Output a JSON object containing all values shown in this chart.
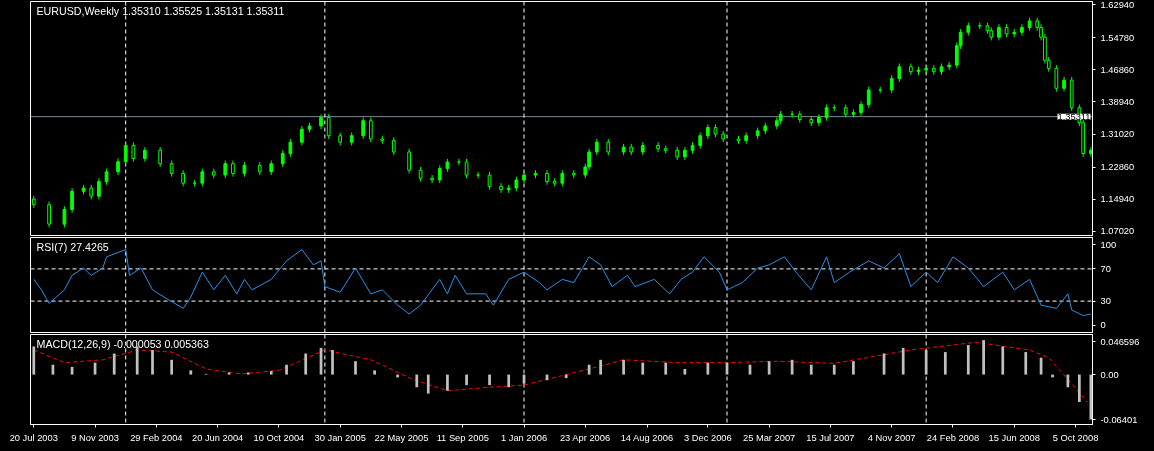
{
  "chart_data": [
    {
      "type": "candlestick",
      "title": "EURUSD,Weekly  1.35310 1.35525 1.35131 1.35311",
      "color": "#00ff00",
      "x": [
        "2003-07-20",
        "2003-08-17",
        "2003-09-14",
        "2003-09-28",
        "2003-10-19",
        "2003-11-02",
        "2003-11-16",
        "2003-11-30",
        "2003-12-21",
        "2004-01-04",
        "2004-01-18",
        "2004-02-08",
        "2004-03-07",
        "2004-03-28",
        "2004-04-18",
        "2004-05-09",
        "2004-05-23",
        "2004-06-13",
        "2004-07-04",
        "2004-07-18",
        "2004-08-08",
        "2004-09-05",
        "2004-09-26",
        "2004-10-17",
        "2004-10-31",
        "2004-11-21",
        "2004-12-05",
        "2004-12-26",
        "2005-01-09",
        "2005-01-30",
        "2005-02-20",
        "2005-03-13",
        "2005-03-27",
        "2005-04-17",
        "2005-05-08",
        "2005-06-05",
        "2005-06-26",
        "2005-07-17",
        "2005-07-31",
        "2005-08-14",
        "2005-09-04",
        "2005-09-18",
        "2005-10-09",
        "2005-10-30",
        "2005-11-20",
        "2005-12-04",
        "2005-12-18",
        "2006-01-01",
        "2006-01-22",
        "2006-02-12",
        "2006-02-26",
        "2006-03-12",
        "2006-04-02",
        "2006-04-23",
        "2006-04-30",
        "2006-05-14",
        "2006-06-04",
        "2006-07-02",
        "2006-07-16",
        "2006-08-06",
        "2006-09-03",
        "2006-09-17",
        "2006-10-08",
        "2006-10-22",
        "2006-11-05",
        "2006-11-19",
        "2006-12-03",
        "2006-12-17",
        "2006-12-31",
        "2007-01-28",
        "2007-02-11",
        "2007-03-04",
        "2007-03-18",
        "2007-04-08",
        "2007-04-15",
        "2007-05-06",
        "2007-05-20",
        "2007-06-10",
        "2007-06-24",
        "2007-07-08",
        "2007-07-22",
        "2007-08-12",
        "2007-08-26",
        "2007-09-09",
        "2007-09-23",
        "2007-10-14",
        "2007-11-04",
        "2007-11-18",
        "2007-12-09",
        "2007-12-23",
        "2008-01-06",
        "2008-01-20",
        "2008-02-03",
        "2008-02-17",
        "2008-03-02",
        "2008-03-09",
        "2008-03-23",
        "2008-04-13",
        "2008-04-27",
        "2008-05-04",
        "2008-05-18",
        "2008-06-01",
        "2008-06-15",
        "2008-06-29",
        "2008-07-13",
        "2008-07-27",
        "2008-08-03",
        "2008-08-10",
        "2008-08-17",
        "2008-08-31",
        "2008-09-14",
        "2008-09-28",
        "2008-10-12",
        "2008-10-19",
        "2008-11-02"
      ],
      "ohlc": [
        [
          1.15,
          1.158,
          1.128,
          1.136
        ],
        [
          1.136,
          1.144,
          1.08,
          1.088
        ],
        [
          1.088,
          1.132,
          1.08,
          1.124
        ],
        [
          1.124,
          1.177,
          1.116,
          1.169
        ],
        [
          1.169,
          1.185,
          1.161,
          1.177
        ],
        [
          1.177,
          1.185,
          1.149,
          1.157
        ],
        [
          1.157,
          1.201,
          1.149,
          1.193
        ],
        [
          1.193,
          1.225,
          1.185,
          1.217
        ],
        [
          1.217,
          1.25,
          1.209,
          1.242
        ],
        [
          1.242,
          1.29,
          1.234,
          1.282
        ],
        [
          1.282,
          1.29,
          1.242,
          1.25
        ],
        [
          1.25,
          1.278,
          1.242,
          1.27
        ],
        [
          1.27,
          1.278,
          1.229,
          1.237
        ],
        [
          1.237,
          1.245,
          1.205,
          1.213
        ],
        [
          1.213,
          1.221,
          1.181,
          1.189
        ],
        [
          1.189,
          1.197,
          1.181,
          1.189
        ],
        [
          1.189,
          1.225,
          1.181,
          1.217
        ],
        [
          1.217,
          1.225,
          1.201,
          1.209
        ],
        [
          1.209,
          1.245,
          1.201,
          1.237
        ],
        [
          1.237,
          1.245,
          1.205,
          1.213
        ],
        [
          1.213,
          1.241,
          1.205,
          1.233
        ],
        [
          1.233,
          1.241,
          1.209,
          1.217
        ],
        [
          1.217,
          1.245,
          1.209,
          1.237
        ],
        [
          1.237,
          1.27,
          1.229,
          1.262
        ],
        [
          1.262,
          1.298,
          1.254,
          1.29
        ],
        [
          1.29,
          1.33,
          1.282,
          1.322
        ],
        [
          1.322,
          1.338,
          1.314,
          1.33
        ],
        [
          1.33,
          1.359,
          1.322,
          1.351
        ],
        [
          1.351,
          1.359,
          1.298,
          1.306
        ],
        [
          1.306,
          1.314,
          1.282,
          1.29
        ],
        [
          1.29,
          1.314,
          1.282,
          1.306
        ],
        [
          1.306,
          1.351,
          1.298,
          1.343
        ],
        [
          1.343,
          1.351,
          1.29,
          1.298
        ],
        [
          1.298,
          1.306,
          1.286,
          1.294
        ],
        [
          1.294,
          1.302,
          1.258,
          1.266
        ],
        [
          1.266,
          1.274,
          1.213,
          1.221
        ],
        [
          1.221,
          1.229,
          1.193,
          1.201
        ],
        [
          1.201,
          1.209,
          1.189,
          1.197
        ],
        [
          1.197,
          1.233,
          1.189,
          1.225
        ],
        [
          1.225,
          1.249,
          1.217,
          1.241
        ],
        [
          1.241,
          1.249,
          1.233,
          1.241
        ],
        [
          1.241,
          1.249,
          1.201,
          1.209
        ],
        [
          1.209,
          1.217,
          1.201,
          1.209
        ],
        [
          1.209,
          1.217,
          1.173,
          1.181
        ],
        [
          1.181,
          1.189,
          1.165,
          1.173
        ],
        [
          1.173,
          1.185,
          1.165,
          1.177
        ],
        [
          1.177,
          1.205,
          1.169,
          1.197
        ],
        [
          1.197,
          1.217,
          1.189,
          1.209
        ],
        [
          1.209,
          1.221,
          1.201,
          1.213
        ],
        [
          1.213,
          1.221,
          1.185,
          1.193
        ],
        [
          1.193,
          1.201,
          1.181,
          1.189
        ],
        [
          1.189,
          1.221,
          1.181,
          1.213
        ],
        [
          1.213,
          1.221,
          1.201,
          1.209
        ],
        [
          1.209,
          1.237,
          1.201,
          1.229
        ],
        [
          1.229,
          1.274,
          1.221,
          1.266
        ],
        [
          1.266,
          1.298,
          1.258,
          1.29
        ],
        [
          1.29,
          1.298,
          1.258,
          1.266
        ],
        [
          1.266,
          1.286,
          1.258,
          1.278
        ],
        [
          1.278,
          1.286,
          1.258,
          1.266
        ],
        [
          1.266,
          1.29,
          1.258,
          1.282
        ],
        [
          1.282,
          1.29,
          1.266,
          1.274
        ],
        [
          1.274,
          1.282,
          1.262,
          1.27
        ],
        [
          1.27,
          1.278,
          1.246,
          1.254
        ],
        [
          1.254,
          1.278,
          1.246,
          1.27
        ],
        [
          1.27,
          1.29,
          1.262,
          1.282
        ],
        [
          1.282,
          1.314,
          1.274,
          1.306
        ],
        [
          1.306,
          1.334,
          1.298,
          1.326
        ],
        [
          1.326,
          1.334,
          1.302,
          1.31
        ],
        [
          1.31,
          1.318,
          1.29,
          1.298
        ],
        [
          1.298,
          1.306,
          1.286,
          1.294
        ],
        [
          1.294,
          1.314,
          1.286,
          1.306
        ],
        [
          1.306,
          1.326,
          1.298,
          1.318
        ],
        [
          1.318,
          1.338,
          1.31,
          1.33
        ],
        [
          1.33,
          1.351,
          1.322,
          1.343
        ],
        [
          1.343,
          1.367,
          1.335,
          1.359
        ],
        [
          1.359,
          1.367,
          1.351,
          1.359
        ],
        [
          1.359,
          1.367,
          1.338,
          1.346
        ],
        [
          1.346,
          1.354,
          1.33,
          1.338
        ],
        [
          1.338,
          1.359,
          1.33,
          1.351
        ],
        [
          1.351,
          1.383,
          1.343,
          1.375
        ],
        [
          1.375,
          1.383,
          1.367,
          1.375
        ],
        [
          1.375,
          1.383,
          1.351,
          1.359
        ],
        [
          1.359,
          1.371,
          1.351,
          1.363
        ],
        [
          1.363,
          1.391,
          1.355,
          1.383
        ],
        [
          1.383,
          1.427,
          1.375,
          1.419
        ],
        [
          1.419,
          1.427,
          1.411,
          1.419
        ],
        [
          1.419,
          1.455,
          1.411,
          1.447
        ],
        [
          1.447,
          1.484,
          1.439,
          1.476
        ],
        [
          1.476,
          1.484,
          1.456,
          1.464
        ],
        [
          1.464,
          1.476,
          1.456,
          1.468
        ],
        [
          1.468,
          1.48,
          1.46,
          1.472
        ],
        [
          1.472,
          1.48,
          1.456,
          1.464
        ],
        [
          1.464,
          1.484,
          1.456,
          1.476
        ],
        [
          1.476,
          1.488,
          1.468,
          1.48
        ],
        [
          1.48,
          1.536,
          1.472,
          1.528
        ],
        [
          1.528,
          1.569,
          1.52,
          1.561
        ],
        [
          1.561,
          1.585,
          1.553,
          1.577
        ],
        [
          1.577,
          1.585,
          1.569,
          1.577
        ],
        [
          1.577,
          1.585,
          1.557,
          1.565
        ],
        [
          1.565,
          1.573,
          1.541,
          1.549
        ],
        [
          1.549,
          1.581,
          1.541,
          1.573
        ],
        [
          1.573,
          1.581,
          1.549,
          1.557
        ],
        [
          1.557,
          1.569,
          1.549,
          1.561
        ],
        [
          1.561,
          1.581,
          1.553,
          1.573
        ],
        [
          1.573,
          1.597,
          1.565,
          1.589
        ],
        [
          1.589,
          1.597,
          1.565,
          1.573
        ],
        [
          1.573,
          1.581,
          1.541,
          1.549
        ],
        [
          1.549,
          1.557,
          1.484,
          1.492
        ],
        [
          1.492,
          1.5,
          1.464,
          1.472
        ],
        [
          1.472,
          1.48,
          1.415,
          1.423
        ],
        [
          1.423,
          1.451,
          1.415,
          1.443
        ],
        [
          1.443,
          1.451,
          1.367,
          1.375
        ],
        [
          1.375,
          1.383,
          1.33,
          1.338
        ],
        [
          1.338,
          1.346,
          1.254,
          1.262
        ],
        [
          1.262,
          1.278,
          1.254,
          1.27
        ]
      ],
      "xlim": [
        "2003-07-14",
        "2008-11-05"
      ],
      "ylim": [
        1.06,
        1.637
      ],
      "yticks": [
        {
          "value": 1.0702,
          "label": "1.07020"
        },
        {
          "value": 1.1494,
          "label": "1.14940"
        },
        {
          "value": 1.2286,
          "label": "1.22860"
        },
        {
          "value": 1.3102,
          "label": "1.31020"
        },
        {
          "value": 1.3894,
          "label": "1.38940"
        },
        {
          "value": 1.4686,
          "label": "1.46860"
        },
        {
          "value": 1.5478,
          "label": "1.54780"
        },
        {
          "value": 1.6294,
          "label": "1.62940"
        }
      ],
      "tick_labels": "y",
      "ref_lines": [
        {
          "axis": "y",
          "value": 1.35311,
          "label": "1.35311",
          "color": "#778899",
          "line_style": "solid"
        },
        {
          "axis": "x",
          "value": "2004-01-04",
          "color": "#ffffff",
          "line_style": "dashed"
        },
        {
          "axis": "x",
          "value": "2005-01-02",
          "color": "#ffffff",
          "line_style": "dashed"
        },
        {
          "axis": "x",
          "value": "2006-01-01",
          "color": "#ffffff",
          "line_style": "dashed"
        },
        {
          "axis": "x",
          "value": "2007-01-07",
          "color": "#ffffff",
          "line_style": "dashed"
        },
        {
          "axis": "x",
          "value": "2008-01-06",
          "color": "#ffffff",
          "line_style": "dashed"
        }
      ]
    },
    {
      "type": "line",
      "title": "RSI(7) 27.4265",
      "color": "#2a8fe6",
      "x": [
        "2003-07-20",
        "2003-08-03",
        "2003-08-17",
        "2003-09-14",
        "2003-09-28",
        "2003-10-19",
        "2003-11-02",
        "2003-11-23",
        "2003-11-30",
        "2004-01-04",
        "2004-01-11",
        "2004-02-01",
        "2004-02-22",
        "2004-03-14",
        "2004-04-18",
        "2004-05-02",
        "2004-05-23",
        "2004-06-13",
        "2004-07-04",
        "2004-07-25",
        "2004-08-08",
        "2004-08-22",
        "2004-09-26",
        "2004-10-24",
        "2004-11-21",
        "2004-12-12",
        "2004-12-26",
        "2005-01-02",
        "2005-01-30",
        "2005-02-27",
        "2005-03-27",
        "2005-04-17",
        "2005-05-15",
        "2005-06-05",
        "2005-06-26",
        "2005-07-31",
        "2005-08-14",
        "2005-08-28",
        "2005-09-18",
        "2005-10-23",
        "2005-11-06",
        "2005-12-04",
        "2006-01-01",
        "2006-01-29",
        "2006-02-12",
        "2006-03-12",
        "2006-04-02",
        "2006-04-30",
        "2006-05-21",
        "2006-06-11",
        "2006-07-09",
        "2006-07-23",
        "2006-08-27",
        "2006-09-24",
        "2006-10-15",
        "2006-11-05",
        "2006-11-26",
        "2006-12-24",
        "2007-01-07",
        "2007-02-04",
        "2007-03-04",
        "2007-03-25",
        "2007-04-22",
        "2007-05-13",
        "2007-06-10",
        "2007-07-08",
        "2007-07-22",
        "2007-08-19",
        "2007-09-23",
        "2007-10-21",
        "2007-11-18",
        "2007-12-09",
        "2008-01-06",
        "2008-01-27",
        "2008-02-24",
        "2008-03-23",
        "2008-04-20",
        "2008-05-25",
        "2008-06-15",
        "2008-07-13",
        "2008-08-03",
        "2008-08-31",
        "2008-09-21",
        "2008-09-28",
        "2008-10-19",
        "2008-11-02"
      ],
      "values": [
        57,
        44,
        27,
        44,
        62,
        71,
        62,
        71,
        85,
        94,
        62,
        71,
        44,
        35,
        21,
        35,
        66,
        44,
        62,
        39,
        57,
        44,
        57,
        80,
        94,
        75,
        80,
        48,
        41,
        71,
        39,
        44,
        25,
        14,
        25,
        57,
        39,
        62,
        39,
        39,
        25,
        57,
        66,
        53,
        44,
        57,
        53,
        85,
        75,
        48,
        62,
        48,
        57,
        39,
        57,
        66,
        85,
        66,
        44,
        53,
        71,
        75,
        85,
        66,
        44,
        85,
        53,
        66,
        80,
        71,
        89,
        48,
        66,
        53,
        85,
        71,
        48,
        66,
        44,
        57,
        25,
        21,
        39,
        19,
        12,
        14
      ],
      "xlim": [
        "2003-07-14",
        "2008-11-05"
      ],
      "ylim": [
        -9,
        109
      ],
      "yticks": [
        0,
        30,
        70,
        100
      ],
      "tick_labels": "y",
      "ref_lines": [
        {
          "axis": "y",
          "value": 30,
          "color": "#ffffff",
          "line_style": "dashed"
        },
        {
          "axis": "y",
          "value": 70,
          "color": "#ffffff",
          "line_style": "dashed"
        },
        {
          "axis": "x",
          "value": "2004-01-04",
          "color": "#ffffff",
          "line_style": "dashed"
        },
        {
          "axis": "x",
          "value": "2005-01-02",
          "color": "#ffffff",
          "line_style": "dashed"
        },
        {
          "axis": "x",
          "value": "2006-01-01",
          "color": "#ffffff",
          "line_style": "dashed"
        },
        {
          "axis": "x",
          "value": "2007-01-07",
          "color": "#ffffff",
          "line_style": "dashed"
        },
        {
          "axis": "x",
          "value": "2008-01-06",
          "color": "#ffffff",
          "line_style": "dashed"
        }
      ]
    },
    {
      "type": "bar",
      "title": "MACD(12,26,9) -0.000053 0.005363",
      "series": [
        {
          "type": "bar",
          "color": "#c0c0c0",
          "x": [
            "2003-07-20",
            "2003-08-24",
            "2003-09-28",
            "2003-11-09",
            "2003-12-14",
            "2004-01-25",
            "2004-02-22",
            "2004-03-28",
            "2004-05-02",
            "2004-05-30",
            "2004-07-11",
            "2004-08-15",
            "2004-09-26",
            "2004-10-24",
            "2004-11-28",
            "2004-12-26",
            "2005-01-16",
            "2005-02-27",
            "2005-04-03",
            "2005-05-15",
            "2005-06-19",
            "2005-07-10",
            "2005-08-14",
            "2005-09-18",
            "2005-10-30",
            "2005-12-04",
            "2006-01-01",
            "2006-02-12",
            "2006-03-19",
            "2006-04-30",
            "2006-05-21",
            "2006-07-02",
            "2006-08-06",
            "2006-09-17",
            "2006-10-22",
            "2006-12-03",
            "2007-01-07",
            "2007-02-18",
            "2007-03-25",
            "2007-05-06",
            "2007-06-10",
            "2007-07-22",
            "2007-08-26",
            "2007-10-21",
            "2007-11-25",
            "2008-01-06",
            "2008-02-10",
            "2008-03-23",
            "2008-04-20",
            "2008-05-25",
            "2008-07-06",
            "2008-08-03",
            "2008-08-24",
            "2008-09-21",
            "2008-10-12",
            "2008-11-02"
          ],
          "values": [
            0.04,
            0.014,
            0.011,
            0.017,
            0.03,
            0.04,
            0.035,
            0.021,
            0.006,
            0.001,
            0.003,
            0.003,
            0.005,
            0.014,
            0.03,
            0.038,
            0.035,
            0.019,
            0.006,
            -0.004,
            -0.018,
            -0.027,
            -0.023,
            -0.015,
            -0.015,
            -0.018,
            -0.013,
            -0.008,
            -0.005,
            0.014,
            0.021,
            0.021,
            0.017,
            0.017,
            0.008,
            0.017,
            0.017,
            0.014,
            0.019,
            0.021,
            0.014,
            0.014,
            0.019,
            0.03,
            0.038,
            0.035,
            0.032,
            0.042,
            0.049,
            0.04,
            0.032,
            0.024,
            -0.004,
            -0.018,
            -0.039,
            -0.064
          ]
        },
        {
          "type": "line",
          "color": "#ff0000",
          "line_style": "dashed",
          "x": [
            "2003-07-20",
            "2003-09-14",
            "2003-11-23",
            "2004-01-25",
            "2004-03-28",
            "2004-05-30",
            "2004-08-01",
            "2004-10-10",
            "2005-01-02",
            "2005-03-27",
            "2005-06-12",
            "2005-08-14",
            "2005-10-30",
            "2006-01-01",
            "2006-04-30",
            "2006-07-02",
            "2006-10-08",
            "2007-01-07",
            "2007-04-08",
            "2007-07-22",
            "2007-12-09",
            "2008-04-06",
            "2008-07-13",
            "2008-08-17",
            "2008-09-28",
            "2008-10-26"
          ],
          "values": [
            0.035,
            0.017,
            0.021,
            0.035,
            0.032,
            0.008,
            0.001,
            0.006,
            0.035,
            0.021,
            -0.007,
            -0.023,
            -0.018,
            -0.015,
            0.008,
            0.021,
            0.017,
            0.017,
            0.019,
            0.016,
            0.035,
            0.046,
            0.035,
            0.024,
            -0.013,
            -0.039
          ]
        }
      ],
      "xlim": [
        "2003-07-14",
        "2008-11-05"
      ],
      "ylim": [
        -0.071,
        0.057
      ],
      "yticks": [
        {
          "value": -0.06401,
          "label": "-0.06401"
        },
        {
          "value": 0,
          "label": "0.00"
        },
        {
          "value": 0.046596,
          "label": "0.046596"
        }
      ],
      "xticks": [
        {
          "value": "2003-07-20",
          "label": "20 Jul 2003"
        },
        {
          "value": "2003-11-09",
          "label": "9 Nov 2003"
        },
        {
          "value": "2004-02-29",
          "label": "29 Feb 2004"
        },
        {
          "value": "2004-06-20",
          "label": "20 Jun 2004"
        },
        {
          "value": "2004-10-10",
          "label": "10 Oct 2004"
        },
        {
          "value": "2005-01-30",
          "label": "30 Jan 2005"
        },
        {
          "value": "2005-05-22",
          "label": "22 May 2005"
        },
        {
          "value": "2005-09-11",
          "label": "11 Sep 2005"
        },
        {
          "value": "2006-01-01",
          "label": "1 Jan 2006"
        },
        {
          "value": "2006-04-23",
          "label": "23 Apr 2006"
        },
        {
          "value": "2006-08-14",
          "label": "14 Aug 2006"
        },
        {
          "value": "2006-12-03",
          "label": "3 Dec 2006"
        },
        {
          "value": "2007-03-25",
          "label": "25 Mar 2007"
        },
        {
          "value": "2007-07-15",
          "label": "15 Jul 2007"
        },
        {
          "value": "2007-11-04",
          "label": "4 Nov 2007"
        },
        {
          "value": "2008-02-24",
          "label": "24 Feb 2008"
        },
        {
          "value": "2008-06-15",
          "label": "15 Jun 2008"
        },
        {
          "value": "2008-10-05",
          "label": "5 Oct 2008"
        }
      ],
      "ref_lines": [
        {
          "axis": "x",
          "value": "2004-01-04",
          "color": "#ffffff",
          "line_style": "dashed"
        },
        {
          "axis": "x",
          "value": "2005-01-02",
          "color": "#ffffff",
          "line_style": "dashed"
        },
        {
          "axis": "x",
          "value": "2006-01-01",
          "color": "#ffffff",
          "line_style": "dashed"
        },
        {
          "axis": "x",
          "value": "2007-01-07",
          "color": "#ffffff",
          "line_style": "dashed"
        },
        {
          "axis": "x",
          "value": "2008-01-06",
          "color": "#ffffff",
          "line_style": "dashed"
        }
      ]
    }
  ]
}
